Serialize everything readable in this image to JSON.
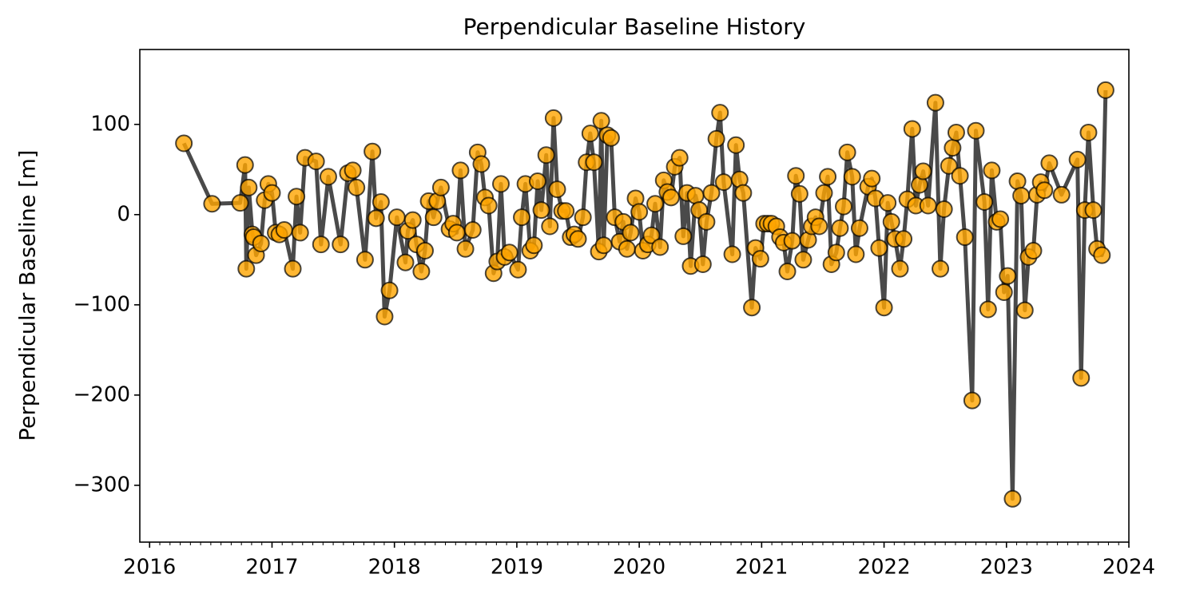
{
  "chart_data": {
    "type": "line",
    "title": "Perpendicular Baseline History",
    "ylabel": "Perpendicular Baseline [m]",
    "color": "#ffa500",
    "line_color": "#404040",
    "xlim": [
      2015.92,
      2024
    ],
    "xticks": [
      2016,
      2017,
      2018,
      2019,
      2020,
      2021,
      2022,
      2023,
      2024
    ],
    "ylim": [
      -363,
      183
    ],
    "yticks": [
      {
        "value": -300,
        "label": "−300"
      },
      {
        "value": -200,
        "label": "−200"
      },
      {
        "value": -100,
        "label": "−100"
      },
      0,
      100
    ],
    "x": [
      2016.28,
      2016.51,
      2016.74,
      2016.78,
      2016.79,
      2016.81,
      2016.84,
      2016.85,
      2016.87,
      2016.91,
      2016.94,
      2016.97,
      2017.0,
      2017.03,
      2017.06,
      2017.1,
      2017.17,
      2017.2,
      2017.23,
      2017.27,
      2017.36,
      2017.4,
      2017.46,
      2017.56,
      2017.62,
      2017.66,
      2017.69,
      2017.76,
      2017.82,
      2017.85,
      2017.89,
      2017.92,
      2017.96,
      2018.02,
      2018.09,
      2018.11,
      2018.15,
      2018.18,
      2018.22,
      2018.25,
      2018.28,
      2018.32,
      2018.35,
      2018.38,
      2018.45,
      2018.48,
      2018.51,
      2018.54,
      2018.58,
      2018.64,
      2018.68,
      2018.71,
      2018.74,
      2018.77,
      2018.81,
      2018.84,
      2018.87,
      2018.9,
      2018.94,
      2019.01,
      2019.04,
      2019.07,
      2019.11,
      2019.14,
      2019.17,
      2019.2,
      2019.24,
      2019.27,
      2019.3,
      2019.33,
      2019.37,
      2019.4,
      2019.44,
      2019.47,
      2019.5,
      2019.54,
      2019.57,
      2019.6,
      2019.63,
      2019.67,
      2019.69,
      2019.71,
      2019.74,
      2019.77,
      2019.8,
      2019.84,
      2019.87,
      2019.9,
      2019.93,
      2019.97,
      2020.0,
      2020.03,
      2020.07,
      2020.1,
      2020.13,
      2020.17,
      2020.2,
      2020.23,
      2020.26,
      2020.29,
      2020.33,
      2020.36,
      2020.39,
      2020.42,
      2020.46,
      2020.49,
      2020.52,
      2020.55,
      2020.59,
      2020.63,
      2020.66,
      2020.69,
      2020.76,
      2020.79,
      2020.82,
      2020.85,
      2020.92,
      2020.95,
      2020.99,
      2021.02,
      2021.05,
      2021.08,
      2021.12,
      2021.15,
      2021.18,
      2021.21,
      2021.25,
      2021.28,
      2021.31,
      2021.34,
      2021.38,
      2021.41,
      2021.44,
      2021.47,
      2021.51,
      2021.54,
      2021.57,
      2021.61,
      2021.64,
      2021.67,
      2021.7,
      2021.74,
      2021.77,
      2021.8,
      2021.87,
      2021.9,
      2021.93,
      2021.96,
      2022.0,
      2022.03,
      2022.06,
      2022.09,
      2022.13,
      2022.16,
      2022.19,
      2022.23,
      2022.26,
      2022.29,
      2022.32,
      2022.36,
      2022.42,
      2022.46,
      2022.49,
      2022.53,
      2022.56,
      2022.59,
      2022.62,
      2022.66,
      2022.72,
      2022.75,
      2022.82,
      2022.85,
      2022.88,
      2022.92,
      2022.95,
      2022.98,
      2023.01,
      2023.05,
      2023.09,
      2023.12,
      2023.15,
      2023.18,
      2023.22,
      2023.25,
      2023.28,
      2023.31,
      2023.35,
      2023.45,
      2023.58,
      2023.61,
      2023.64,
      2023.67,
      2023.71,
      2023.74,
      2023.78,
      2023.81
    ],
    "values": [
      79,
      12,
      13,
      55,
      -60,
      30,
      -22,
      -25,
      -45,
      -32,
      16,
      34,
      24,
      -20,
      -22,
      -17,
      -60,
      20,
      -20,
      63,
      59,
      -33,
      42,
      -33,
      46,
      49,
      30,
      -50,
      70,
      -4,
      14,
      -113,
      -84,
      -3,
      -53,
      -18,
      -6,
      -33,
      -63,
      -40,
      15,
      -3,
      15,
      30,
      -16,
      -10,
      -20,
      49,
      -38,
      -17,
      69,
      56,
      19,
      10,
      -65,
      -52,
      34,
      -47,
      -42,
      -61,
      -3,
      34,
      -40,
      -34,
      37,
      5,
      66,
      -13,
      107,
      28,
      4,
      4,
      -25,
      -22,
      -27,
      -3,
      58,
      90,
      58,
      -41,
      104,
      -34,
      88,
      85,
      -3,
      -30,
      -8,
      -38,
      -20,
      18,
      3,
      -40,
      -33,
      -23,
      12,
      -36,
      38,
      25,
      19,
      53,
      63,
      -24,
      24,
      -57,
      21,
      5,
      -55,
      -8,
      24,
      84,
      113,
      36,
      -44,
      77,
      39,
      24,
      -103,
      -37,
      -49,
      -10,
      -10,
      -10,
      -13,
      -25,
      -31,
      -63,
      -29,
      43,
      23,
      -50,
      -28,
      -13,
      -3,
      -13,
      24,
      42,
      -55,
      -42,
      -15,
      9,
      69,
      42,
      -44,
      -15,
      31,
      40,
      18,
      -37,
      -103,
      13,
      -8,
      -27,
      -60,
      -27,
      17,
      95,
      10,
      33,
      48,
      10,
      124,
      -60,
      6,
      54,
      74,
      91,
      43,
      -25,
      -206,
      93,
      14,
      -105,
      49,
      -8,
      -5,
      -86,
      -68,
      -315,
      37,
      21,
      -106,
      -47,
      -40,
      22,
      36,
      27,
      57,
      22,
      61,
      -181,
      5,
      91,
      5,
      -38,
      -45,
      138
    ]
  }
}
